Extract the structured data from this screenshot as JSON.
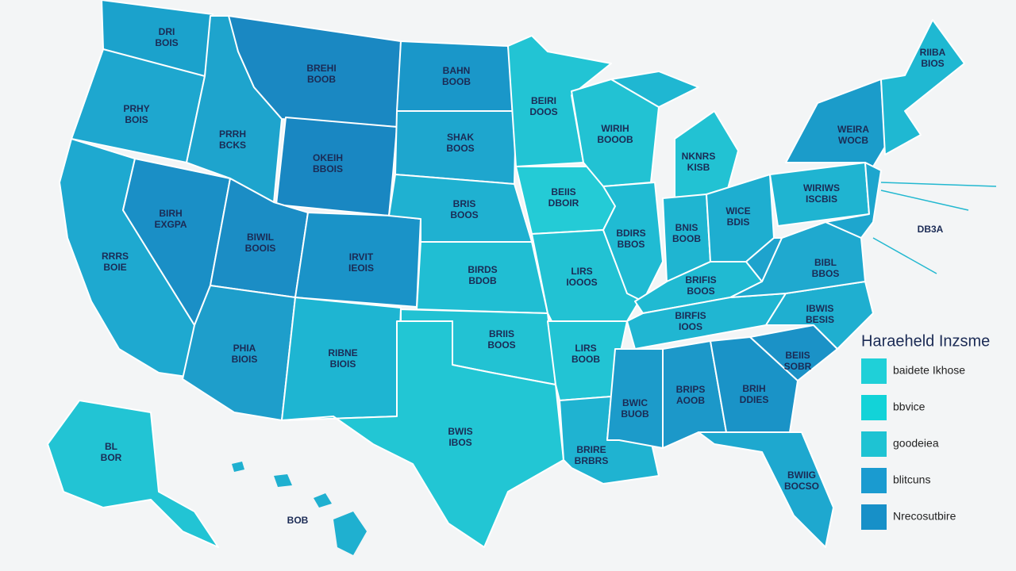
{
  "legend": {
    "title": "Haraeheld Inzsme",
    "items": [
      "baidete Ikhose",
      "bbvice",
      "goodeiea",
      "blitcuns",
      "Nrecosutbire"
    ]
  },
  "annotation": "DB3A",
  "state_labels": [
    [
      "DRI",
      "BOIS"
    ],
    [
      "BREHI",
      "BOOB"
    ],
    [
      "BAHN",
      "BOOB"
    ],
    [
      "PRHY",
      "BOIS"
    ],
    [
      "PRRH",
      "BCKS"
    ],
    [
      "OKEIH",
      "BBOIS"
    ],
    [
      "SHAK",
      "BOOS"
    ],
    [
      "BEIRI",
      "DOOS"
    ],
    [
      "WIRIH",
      "BOOOB"
    ],
    [
      "NKNRS",
      "KISB"
    ],
    [
      "WEIRA",
      "WOCB"
    ],
    [
      "BIRH",
      "EXGPA"
    ],
    [
      "BIWIL",
      "BOOIS"
    ],
    [
      "IRVIT",
      "IEOIS"
    ],
    [
      "BRIS",
      "BOOS"
    ],
    [
      "BEIIS",
      "DBOIR"
    ],
    [
      "BDIRS",
      "BBOS"
    ],
    [
      "BNIS",
      "BOOB"
    ],
    [
      "WICE",
      "BDIS"
    ],
    [
      "WIRIWS",
      "ISCBIS"
    ],
    [
      "RRRS",
      "BOIE"
    ],
    [
      "BIRDS",
      "BDOB"
    ],
    [
      "LIRS",
      "IOOOS"
    ],
    [
      "BRIFIS",
      "BOOS"
    ],
    [
      "BIBL",
      "BBOS"
    ],
    [
      "PHIA",
      "BIOIS"
    ],
    [
      "RIBNE",
      "BIOIS"
    ],
    [
      "BRIIS",
      "BOOS"
    ],
    [
      "LIRS",
      "BOOB"
    ],
    [
      "BIRFIS",
      "IOOS"
    ],
    [
      "IBWIS",
      "BESIS"
    ],
    [
      "BEIIS",
      "SOBR"
    ],
    [
      "BRIH",
      "DDIES"
    ],
    [
      "BRIPS",
      "AOOB"
    ],
    [
      "BWIC",
      "BUOB"
    ],
    [
      "BWIS",
      "IBOS"
    ],
    [
      "BRIRE",
      "BRBRS"
    ],
    [
      "BWIIG",
      "BOCSO"
    ],
    [
      "BL",
      "BOR"
    ],
    [
      "RIIBA",
      "BIOS"
    ],
    [
      "BOB"
    ]
  ]
}
